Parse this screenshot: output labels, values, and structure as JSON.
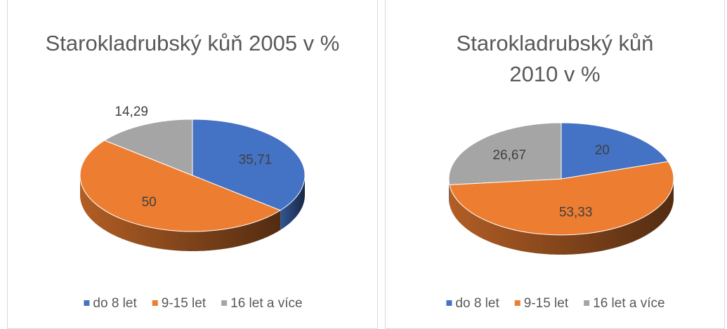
{
  "chart_data": [
    {
      "type": "pie3d",
      "title": "Starokladrubský kůň 2005 v %",
      "categories": [
        "do 8 let",
        "9-15 let",
        "16 let a více"
      ],
      "values": [
        35.71,
        50,
        14.29
      ],
      "value_labels": [
        "35,71",
        "50",
        "14,29"
      ],
      "colors": [
        "#4472c4",
        "#ed7d31",
        "#a5a5a5"
      ],
      "legend": "bottom"
    },
    {
      "type": "pie3d",
      "title": "Starokladrubský kůň 2010 v %",
      "categories": [
        "do 8 let",
        "9-15 let",
        "16 let a více"
      ],
      "values": [
        20,
        53.33,
        26.67
      ],
      "value_labels": [
        "20",
        "53,33",
        "26,67"
      ],
      "colors": [
        "#4472c4",
        "#ed7d31",
        "#a5a5a5"
      ],
      "legend": "bottom"
    }
  ]
}
